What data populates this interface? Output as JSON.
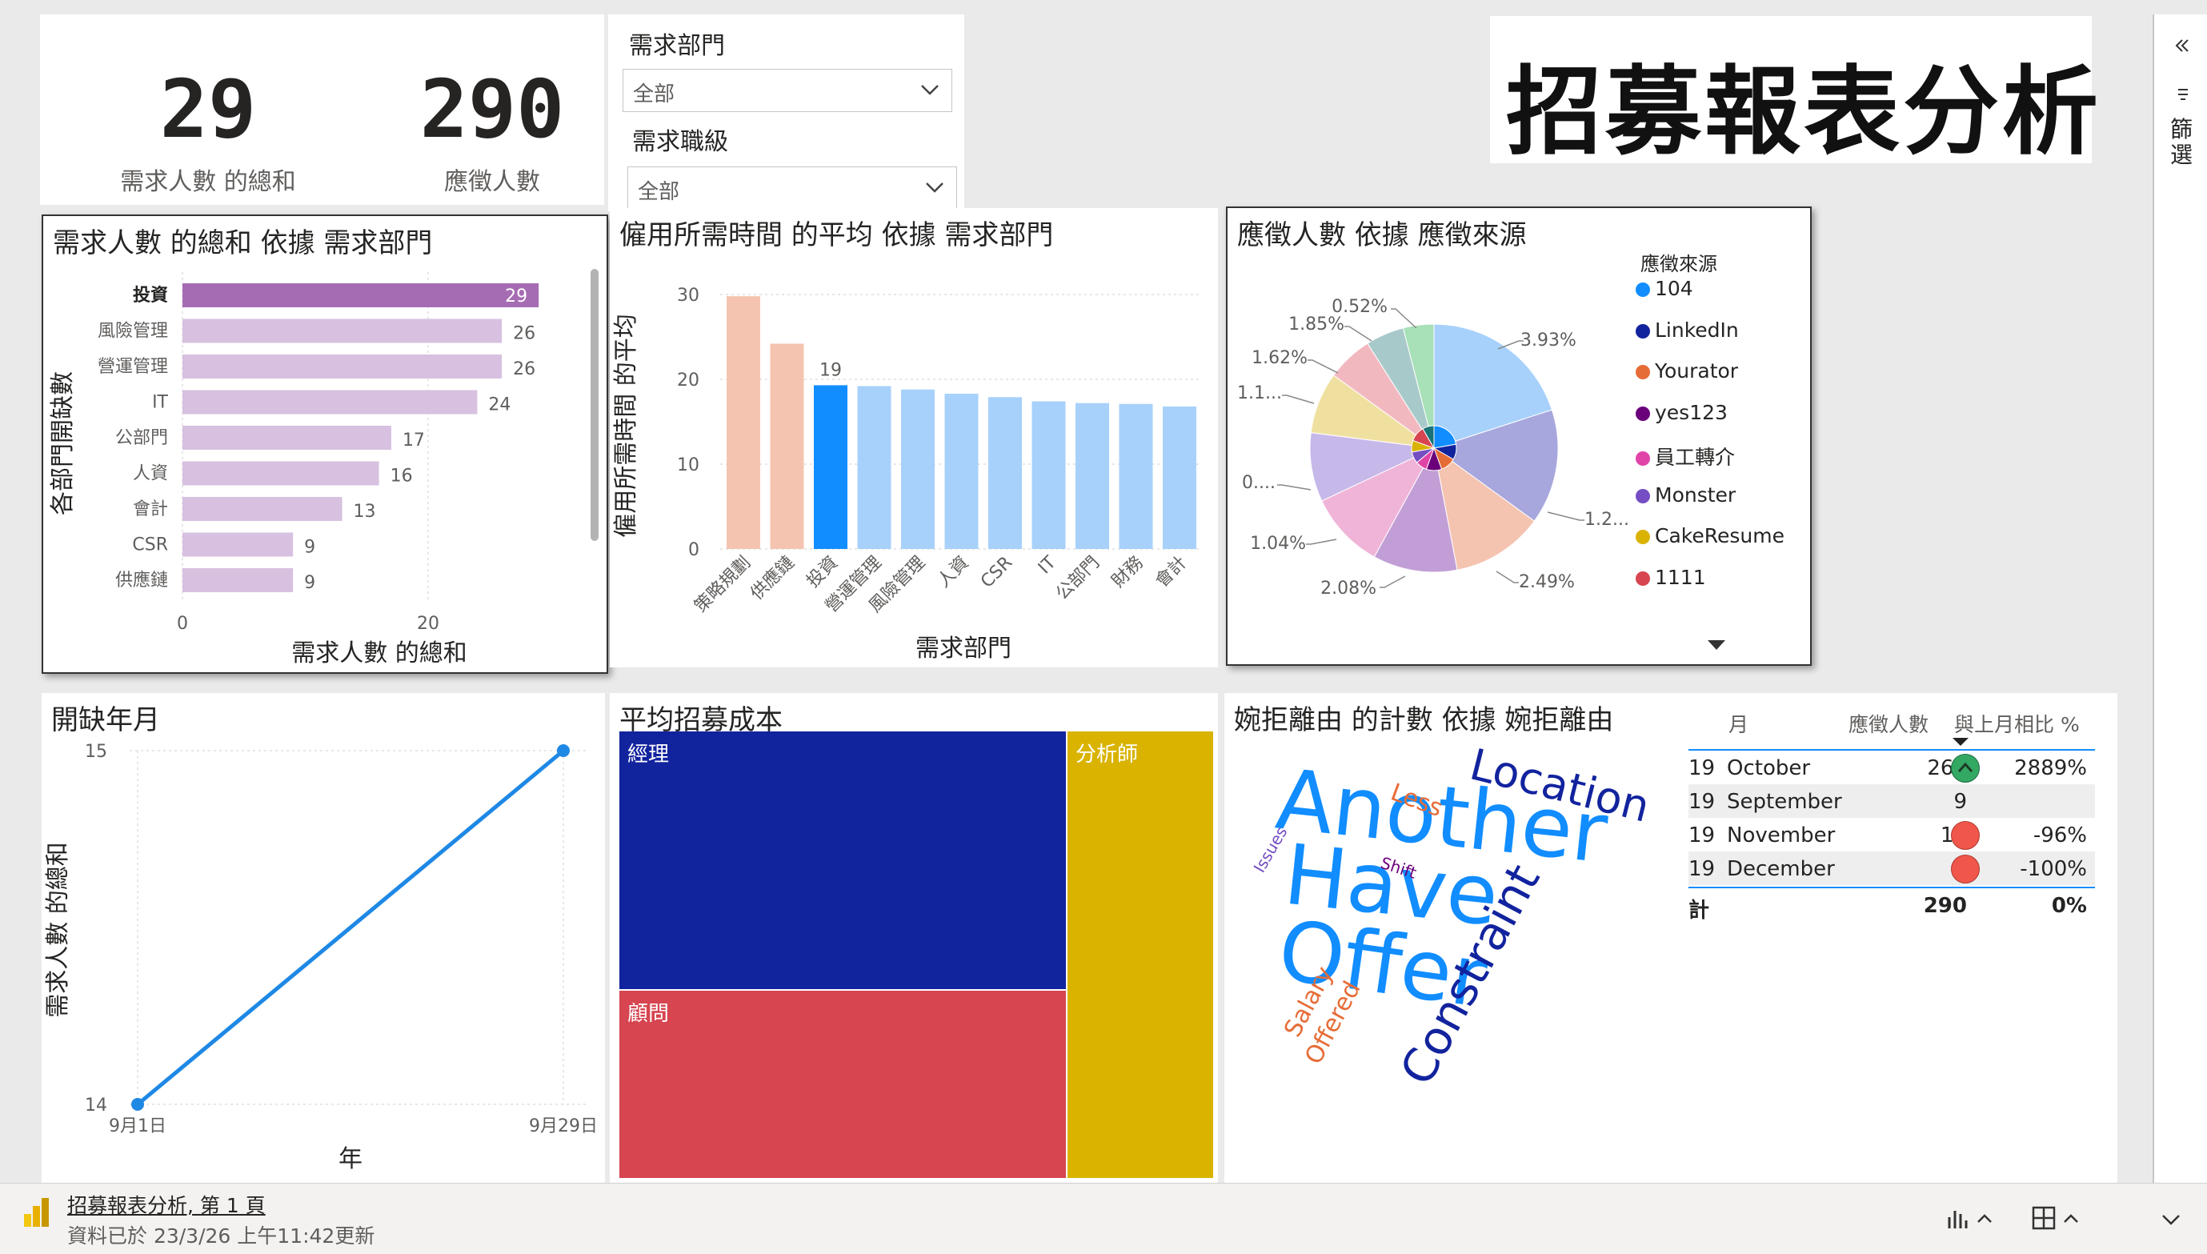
{
  "report": {
    "title": "招募報表分析"
  },
  "cards": [
    {
      "value": "29",
      "label": "需求人數 的總和"
    },
    {
      "value": "290",
      "label": "應徵人數"
    }
  ],
  "slicers": [
    {
      "title": "需求部門",
      "value": "全部"
    },
    {
      "title": "需求職級",
      "value": "全部"
    }
  ],
  "filter_pane": {
    "label": "篩選"
  },
  "footer": {
    "page_name": "招募報表分析, 第 1 頁",
    "updated": "資料已於 23/3/26 上午11:42更新"
  },
  "colors": {
    "purple": "#a66cb3",
    "purple_light": "#d7c0e0",
    "salmon": "#f4c4b1",
    "blue": "#118dff",
    "blue_light": "#a7d1fb",
    "line": "#1e88e5"
  },
  "chart_data": [
    {
      "id": "dept_demand",
      "type": "bar",
      "orientation": "horizontal",
      "title": "需求人數 的總和 依據 需求部門",
      "xlabel": "需求人數 的總和",
      "ylabel": "各部門開缺數",
      "xlim": [
        0,
        30
      ],
      "xticks": [
        "0",
        "20"
      ],
      "categories": [
        "投資",
        "風險管理",
        "營運管理",
        "IT",
        "公部門",
        "人資",
        "會計",
        "CSR",
        "供應鏈"
      ],
      "values": [
        29,
        26,
        26,
        24,
        17,
        16,
        13,
        9,
        9
      ],
      "highlight_index": 0
    },
    {
      "id": "avg_time",
      "type": "bar",
      "title": "僱用所需時間 的平均 依據 需求部門",
      "xlabel": "需求部門",
      "ylabel": "僱用所需時間 的平均",
      "ylim": [
        0,
        30
      ],
      "yticks": [
        "0",
        "10",
        "20",
        "30"
      ],
      "categories": [
        "策略規劃",
        "供應鏈",
        "投資",
        "營運管理",
        "風險管理",
        "人資",
        "CSR",
        "IT",
        "公部門",
        "財務",
        "會計"
      ],
      "values": [
        29.8,
        24.2,
        19.3,
        19.2,
        18.8,
        18.3,
        17.9,
        17.4,
        17.2,
        17.1,
        16.8
      ],
      "highlight_index": 2,
      "data_label": "19"
    },
    {
      "id": "applicant_source",
      "type": "pie",
      "title": "應徵人數 依據 應徵來源",
      "legend_title": "應徵來源",
      "legend": [
        "104",
        "LinkedIn",
        "Yourator",
        "yes123",
        "員工轉介",
        "Monster",
        "CakeResume",
        "1111"
      ],
      "slice_labels": [
        "3.93%",
        "1.2...",
        "2.49%",
        "2.08%",
        "1.04%",
        "0....",
        "1.1...",
        "1.62%",
        "1.85%",
        "0.52%"
      ],
      "slices": [
        {
          "value": 20,
          "color": "#a7d1fb"
        },
        {
          "value": 15,
          "color": "#a7a7dd"
        },
        {
          "value": 12,
          "color": "#f4c4b1"
        },
        {
          "value": 11,
          "color": "#c29ed6"
        },
        {
          "value": 10,
          "color": "#f0b4d8"
        },
        {
          "value": 9,
          "color": "#c7b8ea"
        },
        {
          "value": 8,
          "color": "#f0e0a0"
        },
        {
          "value": 6,
          "color": "#f2b8c0"
        },
        {
          "value": 5,
          "color": "#a8c9c9"
        },
        {
          "value": 4,
          "color": "#a8e0b8"
        }
      ],
      "inner_slices": [
        {
          "value": 4,
          "color": "#118dff"
        },
        {
          "value": 2,
          "color": "#12239e"
        },
        {
          "value": 2,
          "color": "#e66c37"
        },
        {
          "value": 2,
          "color": "#6b007b"
        },
        {
          "value": 1.5,
          "color": "#e044a7"
        },
        {
          "value": 1.5,
          "color": "#744ec2"
        },
        {
          "value": 1.5,
          "color": "#d9b300"
        },
        {
          "value": 2,
          "color": "#d64550"
        },
        {
          "value": 1.5,
          "color": "#197278"
        }
      ],
      "legend_colors": [
        "#118dff",
        "#12239e",
        "#e66c37",
        "#6b007b",
        "#e044a7",
        "#744ec2",
        "#d9b300",
        "#d64550"
      ]
    },
    {
      "id": "open_month",
      "type": "line",
      "title": "開缺年月",
      "xlabel": "年",
      "ylabel": "需求人數 的總和",
      "ylim": [
        14,
        15
      ],
      "yticks": [
        "14",
        "15"
      ],
      "x": [
        "9月1日",
        "9月29日"
      ],
      "values": [
        14,
        15
      ]
    },
    {
      "id": "avg_cost",
      "type": "treemap",
      "title": "平均招募成本",
      "items": [
        {
          "label": "經理",
          "value": 1400,
          "color": "#12239e"
        },
        {
          "label": "顧問",
          "value": 1000,
          "color": "#d64550"
        },
        {
          "label": "分析師",
          "value": 750,
          "color": "#d9b300"
        }
      ]
    },
    {
      "id": "decline_reason",
      "type": "wordcloud",
      "title": "婉拒離由 的計數 依據 婉拒離由",
      "words": [
        "Another",
        "Have",
        "Offer",
        "Location",
        "Constraint",
        "Less",
        "Shift",
        "Issues",
        "Salary",
        "Offered"
      ]
    },
    {
      "id": "monthly_table",
      "type": "table",
      "columns": [
        "月",
        "應徵人數",
        "與上月相比 %"
      ],
      "rows": [
        {
          "year": "19",
          "month": "October",
          "count": "269",
          "status": "up",
          "pct": "2889%"
        },
        {
          "year": "19",
          "month": "September",
          "count": "9",
          "status": "",
          "pct": ""
        },
        {
          "year": "19",
          "month": "November",
          "count": "12",
          "status": "down",
          "pct": "-96%"
        },
        {
          "year": "19",
          "month": "December",
          "count": "",
          "status": "down",
          "pct": "-100%"
        }
      ],
      "total": {
        "label": "計",
        "count": "290",
        "pct": "0%"
      }
    }
  ]
}
